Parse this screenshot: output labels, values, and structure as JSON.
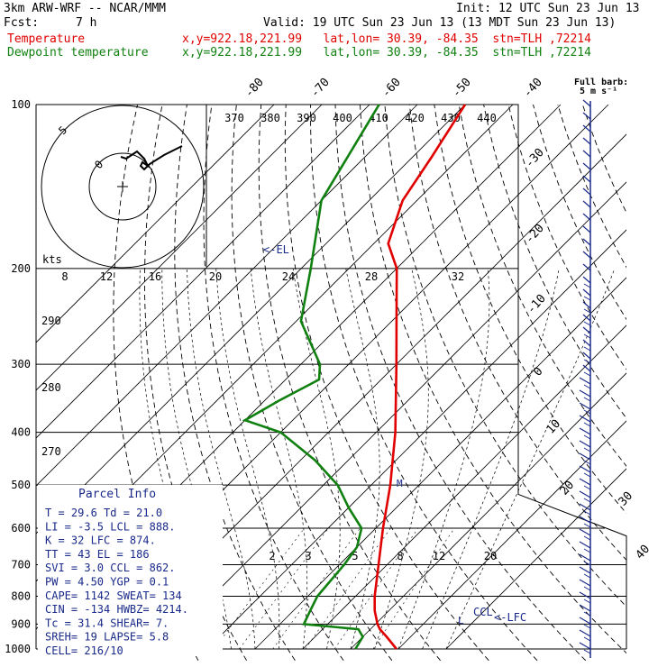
{
  "header": {
    "model": "3km ARW-WRF -- NCAR/MMM",
    "init": "Init: 12 UTC Sun 23 Jun 13",
    "fcst_label": "Fcst:",
    "fcst_value": "7 h",
    "valid": "Valid: 19 UTC Sun 23 Jun 13 (13 MDT Sun 23 Jun 13)"
  },
  "legend": [
    {
      "label": "Temperature",
      "info": "x,y=922.18,221.99   lat,lon= 30.39, -84.35  stn=TLH ,72214",
      "color": "#e00000"
    },
    {
      "label": "Dewpoint temperature",
      "info": "x,y=922.18,221.99   lat,lon= 30.39, -84.35  stn=TLH ,72214",
      "color": "#108010"
    }
  ],
  "chart_data": {
    "type": "line",
    "chart_kind": "skew-T log-P sounding",
    "y_axis": {
      "scale": "log",
      "range": [
        1000,
        100
      ],
      "ticks": [
        100,
        200,
        300,
        400,
        500,
        600,
        700,
        800,
        900,
        1000
      ]
    },
    "temperature_labels": [
      {
        "text": "-80"
      },
      {
        "text": "-70"
      },
      {
        "text": "-60"
      },
      {
        "text": "-50"
      },
      {
        "text": "-40"
      },
      {
        "text": "-30"
      },
      {
        "text": "-20"
      },
      {
        "text": "-10"
      },
      {
        "text": "0"
      },
      {
        "text": "10"
      },
      {
        "text": "20"
      },
      {
        "text": "30"
      },
      {
        "text": "40"
      }
    ],
    "theta_e_labels": [
      "370",
      "380",
      "390",
      "400",
      "410",
      "420",
      "430",
      "440"
    ],
    "mixing_ratio_labels": [
      "2",
      "3",
      "5",
      "8",
      "12",
      "20"
    ],
    "hodograph_speed_label": "kts",
    "hodograph_speed_ticks": [
      "8",
      "12",
      "16",
      "20",
      "24",
      "28",
      "32"
    ],
    "theta_labels": [
      "290",
      "280",
      "270"
    ],
    "series": [
      {
        "name": "Temperature",
        "color": "#e00000",
        "points": [
          [
            1000,
            29.6
          ],
          [
            950,
            25.0
          ],
          [
            920,
            22.0
          ],
          [
            900,
            20.4
          ],
          [
            850,
            17.0
          ],
          [
            800,
            14.0
          ],
          [
            700,
            8.2
          ],
          [
            600,
            1.5
          ],
          [
            500,
            -6.0
          ],
          [
            400,
            -16.0
          ],
          [
            300,
            -30.0
          ],
          [
            250,
            -39.0
          ],
          [
            200,
            -50.0
          ],
          [
            180,
            -57.0
          ],
          [
            150,
            -63.0
          ],
          [
            125,
            -66.0
          ],
          [
            100,
            -70.0
          ]
        ]
      },
      {
        "name": "Dewpoint temperature",
        "color": "#108010",
        "points": [
          [
            1000,
            21.0
          ],
          [
            950,
            20.0
          ],
          [
            920,
            17.5
          ],
          [
            900,
            5.0
          ],
          [
            850,
            3.5
          ],
          [
            800,
            2.0
          ],
          [
            700,
            1.0
          ],
          [
            650,
            0.0
          ],
          [
            600,
            -3.0
          ],
          [
            550,
            -10.0
          ],
          [
            500,
            -17.0
          ],
          [
            450,
            -27.0
          ],
          [
            400,
            -40.0
          ],
          [
            380,
            -50.0
          ],
          [
            350,
            -47.0
          ],
          [
            320,
            -43.0
          ],
          [
            300,
            -46.0
          ],
          [
            250,
            -59.0
          ],
          [
            200,
            -68.0
          ],
          [
            150,
            -80.0
          ],
          [
            100,
            -88.0
          ]
        ]
      }
    ],
    "annotations": [
      {
        "text": "<-EL",
        "p": 186
      },
      {
        "text": "CCL",
        "p": 862
      },
      {
        "text": "<-LFC",
        "p": 874
      }
    ],
    "wind_barbs": {
      "label_line1": "Full barb:",
      "label_line2": "5 m s⁻¹"
    }
  },
  "parcel_info": {
    "title": "Parcel Info",
    "rows": [
      "T   =   29.6  Td  =  21.0",
      "LI  =   -3.5  LCL =  888.",
      "K   =     32  LFC =  874.",
      "TT  =     43  EL  =   186",
      "SVI =    3.0  CCL =  862.",
      "PW  =   4.50  YGP =   0.1",
      "CAPE=   1142  SWEAT=  134",
      "CIN =   -134  HWBZ= 4214.",
      "Tc  =   31.4  SHEAR=   7.",
      "SREH=     19  LAPSE=  5.8",
      "CELL= 216/10"
    ]
  }
}
